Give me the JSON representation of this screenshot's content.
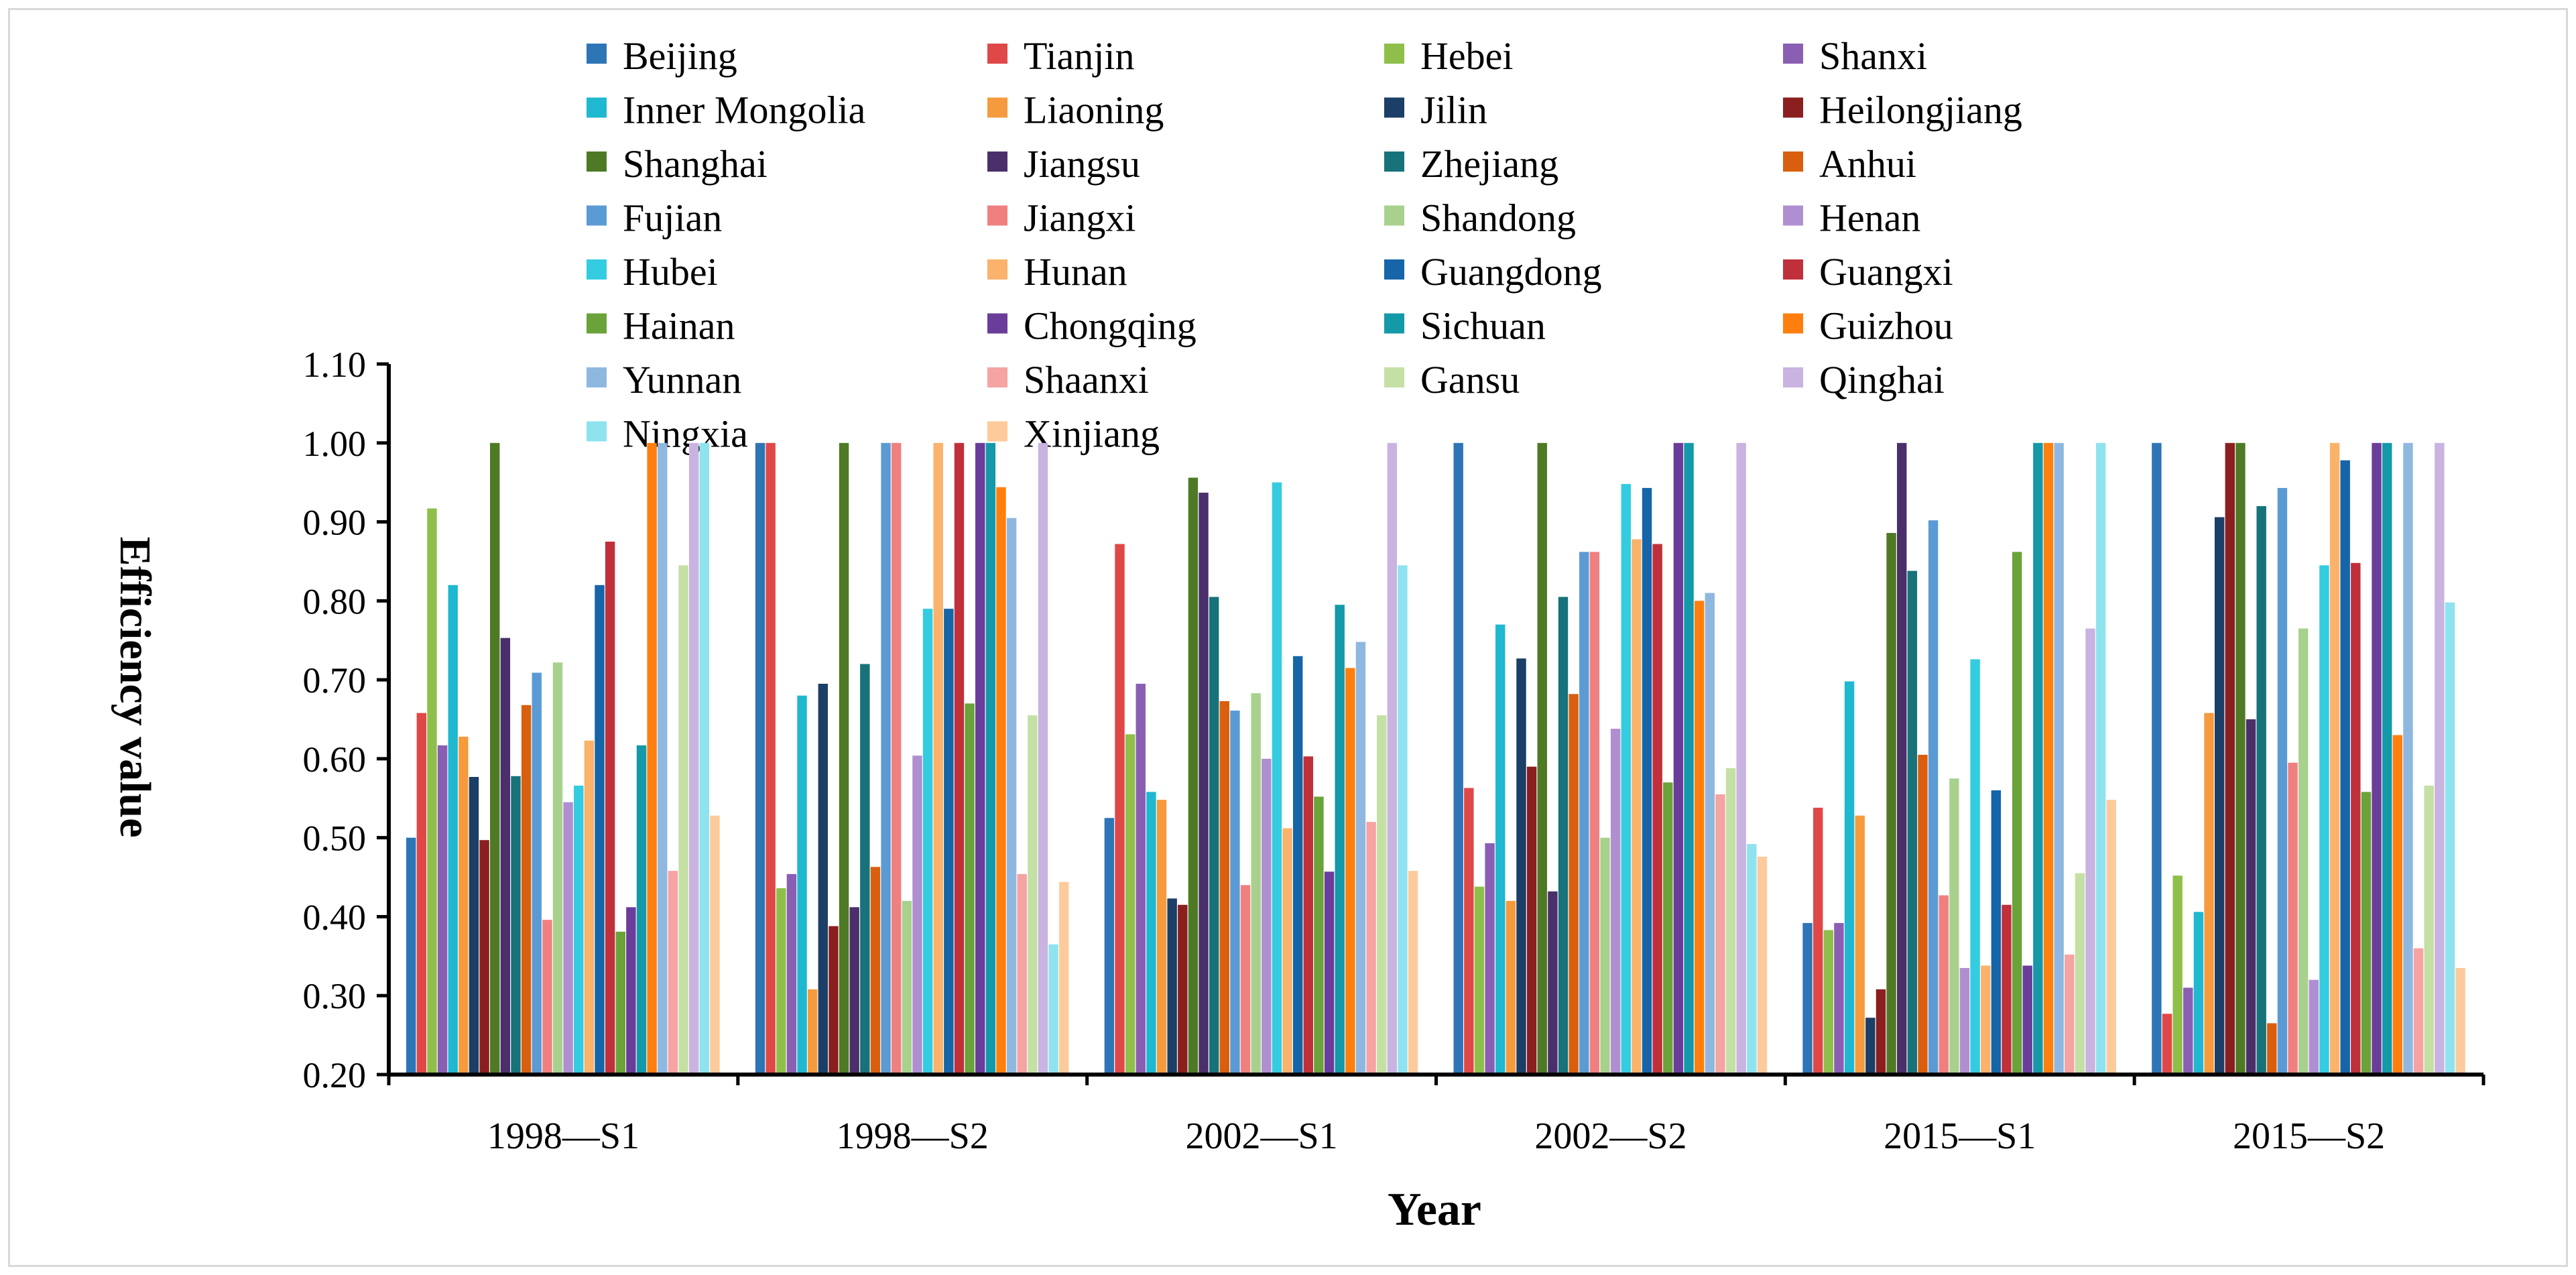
{
  "chart_data": {
    "type": "bar",
    "title": "",
    "xlabel": "Year",
    "ylabel": "Efficiency value",
    "ylim": [
      0.2,
      1.1
    ],
    "yticks": [
      "0.20",
      "0.30",
      "0.40",
      "0.50",
      "0.60",
      "0.70",
      "0.80",
      "0.90",
      "1.00",
      "1.10"
    ],
    "legend_position": "top",
    "categories": [
      "1998—S1",
      "1998—S2",
      "2002—S1",
      "2002—S2",
      "2015—S1",
      "2015—S2"
    ],
    "series": [
      {
        "name": "Beijing",
        "color": "#2e75b6",
        "values": [
          0.5,
          1.0,
          0.525,
          1.0,
          0.392,
          1.0
        ]
      },
      {
        "name": "Tianjin",
        "color": "#e04848",
        "values": [
          0.658,
          1.0,
          0.872,
          0.563,
          0.538,
          0.277
        ]
      },
      {
        "name": "Hebei",
        "color": "#8fbf4a",
        "values": [
          0.917,
          0.436,
          0.631,
          0.438,
          0.383,
          0.452
        ]
      },
      {
        "name": "Shanxi",
        "color": "#8a5fb3",
        "values": [
          0.617,
          0.454,
          0.695,
          0.493,
          0.392,
          0.31
        ]
      },
      {
        "name": "Inner Mongolia",
        "color": "#1fb8d0",
        "values": [
          0.82,
          0.68,
          0.558,
          0.77,
          0.698,
          0.406
        ]
      },
      {
        "name": "Liaoning",
        "color": "#f59b3d",
        "values": [
          0.628,
          0.308,
          0.548,
          0.42,
          0.528,
          0.658
        ]
      },
      {
        "name": "Jilin",
        "color": "#1b3f66",
        "values": [
          0.577,
          0.695,
          0.423,
          0.727,
          0.272,
          0.906
        ]
      },
      {
        "name": "Heilongjiang",
        "color": "#8b1f1f",
        "values": [
          0.497,
          0.388,
          0.415,
          0.59,
          0.308,
          1.0
        ]
      },
      {
        "name": "Shanghai",
        "color": "#4e7a25",
        "values": [
          1.0,
          1.0,
          0.956,
          1.0,
          0.886,
          1.0
        ]
      },
      {
        "name": "Jiangsu",
        "color": "#4b2f6b",
        "values": [
          0.753,
          0.412,
          0.937,
          0.432,
          1.0,
          0.65
        ]
      },
      {
        "name": "Zhejiang",
        "color": "#17727a",
        "values": [
          0.578,
          0.72,
          0.805,
          0.805,
          0.838,
          0.92
        ]
      },
      {
        "name": "Anhui",
        "color": "#d95f0e",
        "values": [
          0.668,
          0.463,
          0.673,
          0.682,
          0.605,
          0.265
        ]
      },
      {
        "name": "Fujian",
        "color": "#5b9bd5",
        "values": [
          0.709,
          1.0,
          0.661,
          0.862,
          0.902,
          0.943
        ]
      },
      {
        "name": "Jiangxi",
        "color": "#f08080",
        "values": [
          0.396,
          1.0,
          0.44,
          0.862,
          0.427,
          0.595
        ]
      },
      {
        "name": "Shandong",
        "color": "#a9d18e",
        "values": [
          0.722,
          0.42,
          0.683,
          0.5,
          0.575,
          0.765
        ]
      },
      {
        "name": "Henan",
        "color": "#b08fd1",
        "values": [
          0.545,
          0.604,
          0.6,
          0.638,
          0.335,
          0.32
        ]
      },
      {
        "name": "Hubei",
        "color": "#33cce0",
        "values": [
          0.566,
          0.79,
          0.95,
          0.948,
          0.726,
          0.845
        ]
      },
      {
        "name": "Hunan",
        "color": "#fbb26b",
        "values": [
          0.623,
          1.0,
          0.512,
          0.878,
          0.338,
          1.0
        ]
      },
      {
        "name": "Guangdong",
        "color": "#1565a8",
        "values": [
          0.82,
          0.79,
          0.73,
          0.943,
          0.56,
          0.978
        ]
      },
      {
        "name": "Guangxi",
        "color": "#c0303a",
        "values": [
          0.875,
          1.0,
          0.603,
          0.872,
          0.415,
          0.848
        ]
      },
      {
        "name": "Hainan",
        "color": "#6aa33a",
        "values": [
          0.381,
          0.67,
          0.552,
          0.57,
          0.862,
          0.558
        ]
      },
      {
        "name": "Chongqing",
        "color": "#6a3d9a",
        "values": [
          0.412,
          1.0,
          0.457,
          1.0,
          0.338,
          1.0
        ]
      },
      {
        "name": "Sichuan",
        "color": "#1499a8",
        "values": [
          0.617,
          1.0,
          0.795,
          1.0,
          1.0,
          1.0
        ]
      },
      {
        "name": "Guizhou",
        "color": "#ff7f0e",
        "values": [
          1.0,
          0.944,
          0.715,
          0.8,
          1.0,
          0.63
        ]
      },
      {
        "name": "Yunnan",
        "color": "#8fb8e0",
        "values": [
          1.0,
          0.905,
          0.748,
          0.81,
          1.0,
          1.0
        ]
      },
      {
        "name": "Shaanxi",
        "color": "#f5a3a3",
        "values": [
          0.458,
          0.454,
          0.52,
          0.555,
          0.352,
          0.36
        ]
      },
      {
        "name": "Gansu",
        "color": "#c5e0a5",
        "values": [
          0.845,
          0.655,
          0.655,
          0.588,
          0.455,
          0.566
        ]
      },
      {
        "name": "Qinghai",
        "color": "#c9b3e0",
        "values": [
          1.0,
          1.0,
          1.0,
          1.0,
          0.765,
          1.0
        ]
      },
      {
        "name": "Ningxia",
        "color": "#8fe3ef",
        "values": [
          1.0,
          0.365,
          0.845,
          0.492,
          1.0,
          0.798
        ]
      },
      {
        "name": "Xinjiang",
        "color": "#fdcb9b",
        "values": [
          0.528,
          0.444,
          0.458,
          0.476,
          0.548,
          0.335
        ]
      }
    ]
  }
}
